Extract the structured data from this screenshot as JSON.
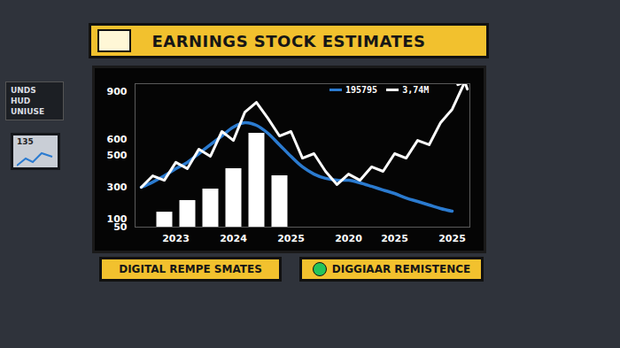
{
  "chart_data": {
    "type": "line",
    "title": "EARNINGS STOCK ESTIMATES",
    "categories": [
      null,
      null,
      null,
      "2023",
      null,
      null,
      null,
      null,
      "2024",
      null,
      null,
      null,
      null,
      "2025",
      null,
      null,
      null,
      null,
      "2020",
      null,
      null,
      null,
      "2025",
      null,
      null,
      null,
      null,
      "2025",
      null
    ],
    "series": [
      {
        "name": "195795",
        "color": "#2b7bd0",
        "values": [
          300,
          333,
          372,
          417,
          456,
          511,
          567,
          622,
          678,
          706,
          689,
          639,
          567,
          494,
          428,
          383,
          356,
          344,
          344,
          328,
          306,
          283,
          261,
          233,
          211,
          189,
          167,
          150,
          null
        ]
      },
      {
        "name": "3,74M",
        "color": "#ffffff",
        "values": [
          300,
          372,
          344,
          456,
          417,
          539,
          494,
          650,
          594,
          772,
          833,
          733,
          622,
          650,
          483,
          511,
          400,
          317,
          383,
          344,
          428,
          400,
          511,
          483,
          594,
          567,
          706,
          789,
          945
        ]
      },
      {
        "type": "bar",
        "color": "#ffffff",
        "values": [
          null,
          null,
          144,
          null,
          217,
          null,
          289,
          null,
          417,
          null,
          639,
          null,
          372,
          null,
          null,
          null,
          null,
          null,
          null,
          null,
          null,
          null,
          null,
          null,
          null,
          null,
          null,
          null,
          null
        ]
      }
    ],
    "ylim": [
      50,
      950
    ],
    "yticks": [
      50,
      100,
      300,
      500,
      600,
      900
    ],
    "legend": "top-right",
    "annotations": [
      "DIGITAL REMPE SMATES",
      "DIGGIAAR REMISTENCE"
    ]
  },
  "scene": {
    "sign": [
      "UNDS",
      "HUD",
      "UNIUSE"
    ],
    "monitor": "135"
  }
}
